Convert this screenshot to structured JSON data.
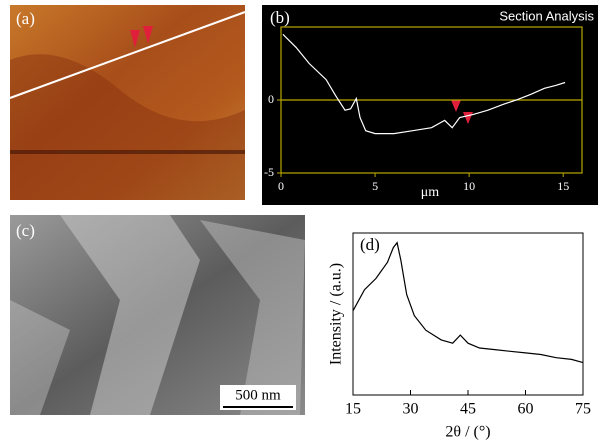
{
  "panel_labels": [
    "(a)",
    "(b)",
    "(c)",
    "(d)"
  ],
  "scale_bar": "500 nm",
  "chart_data": [
    {
      "type": "line",
      "title": "Section Analysis",
      "xlabel": "μm",
      "x": [
        0.1,
        0.8,
        1.5,
        2.4,
        2.9,
        3.4,
        3.7,
        4.0,
        4.2,
        4.5,
        5.0,
        6.0,
        7.0,
        8.0,
        8.7,
        9.1,
        9.5,
        10.2,
        11.0,
        11.8,
        12.5,
        13.3,
        14.0,
        14.6,
        15.1
      ],
      "values": [
        4.5,
        3.6,
        2.5,
        1.4,
        0.3,
        -0.7,
        -0.6,
        0.1,
        -1.2,
        -2.1,
        -2.3,
        -2.3,
        -2.1,
        -1.9,
        -1.4,
        -1.9,
        -1.2,
        -1.0,
        -0.7,
        -0.3,
        0.0,
        0.4,
        0.8,
        1.0,
        1.2
      ],
      "color": "#ffffff",
      "xlim": [
        0,
        16
      ],
      "xticks": [
        0,
        5,
        10,
        15
      ],
      "ylim": [
        -5,
        5
      ],
      "yticks": [
        -5,
        0
      ]
    },
    {
      "type": "line",
      "xlabel": "2θ / (°)",
      "ylabel": "Intensity / (a.u.)",
      "x": [
        15,
        18,
        21,
        24,
        25.5,
        26.5,
        27.5,
        29,
        31,
        34,
        38,
        41,
        43,
        45,
        48,
        52,
        56,
        60,
        64,
        68,
        72,
        75
      ],
      "values": [
        52,
        65,
        72,
        82,
        91,
        94,
        83,
        62,
        49,
        40,
        34,
        32,
        37,
        32,
        29,
        28,
        27,
        26,
        25,
        23,
        22,
        20
      ],
      "color": "#000000",
      "xlim": [
        15,
        75
      ],
      "xticks": [
        15,
        30,
        45,
        60,
        75
      ],
      "ylim": [
        0,
        100
      ]
    }
  ]
}
